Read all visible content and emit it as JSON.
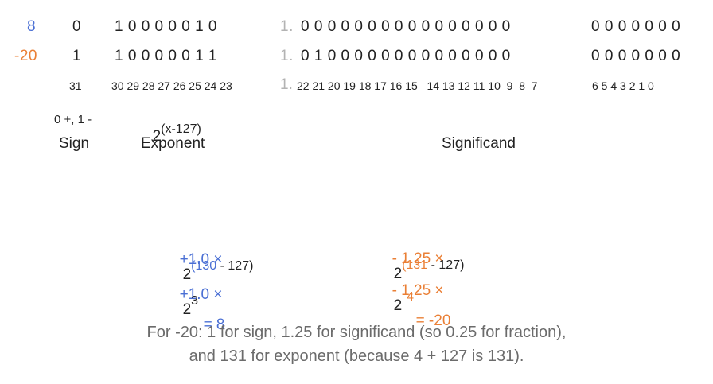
{
  "rows": [
    {
      "value": "8",
      "sign": "0",
      "exponent": "1 0 0 0 0 0 1 0",
      "lead": "1.",
      "fraction_a": "0 0 0 0 0 0 0 0 0 0 0 0 0 0 0 0",
      "fraction_b": "0 0 0 0 0 0 0"
    },
    {
      "value": "-20",
      "sign": "1",
      "exponent": "1 0 0 0 0 0 1 1",
      "lead": "1.",
      "fraction_a": "0 1 0 0 0 0 0 0 0 0 0 0 0 0 0 0",
      "fraction_b": "0 0 0 0 0 0 0"
    }
  ],
  "bit_index": {
    "sign": "31",
    "exponent": "30 29 28 27 26 25 24 23",
    "lead": "1.",
    "fraction_a": "22 21 20 19 18 17 16 15   14 13 12 11 10  9  8  7",
    "fraction_b": "6 5 4 3 2 1 0"
  },
  "labels": {
    "sign_note": "0 +, 1 -",
    "exponent_formula_base": "2",
    "exponent_formula_power": "(x-127)",
    "sign": "Sign",
    "exponent": "Exponent",
    "significand": "Significand"
  },
  "example_8": {
    "line1_coef": "+1.0 ×",
    "line1_base": "2",
    "line1_exp_num": "(130",
    "line1_exp_rest": " - 127)",
    "line2_coef": "+1.0 ×",
    "line2_base": "2",
    "line2_exp": "3",
    "result": "= 8"
  },
  "example_neg20": {
    "line1_coef": "- 1.25 ×",
    "line1_base": "2",
    "line1_exp_num": "(131",
    "line1_exp_rest": " - 127)",
    "line2_coef": "- 1.25 ×",
    "line2_base": "2",
    "line2_exp": "4",
    "result": "= -20"
  },
  "caption": {
    "line1": "For -20: 1 for sign, 1.25 for significand (so 0.25 for fraction),",
    "line2": "and 131 for exponent (because 4 + 127 is 131)."
  },
  "colors": {
    "blue": "#4a6fd4",
    "orange": "#ea7f35",
    "gray": "#b3b3b3",
    "text": "#222222",
    "caption": "#6b6b6b"
  }
}
